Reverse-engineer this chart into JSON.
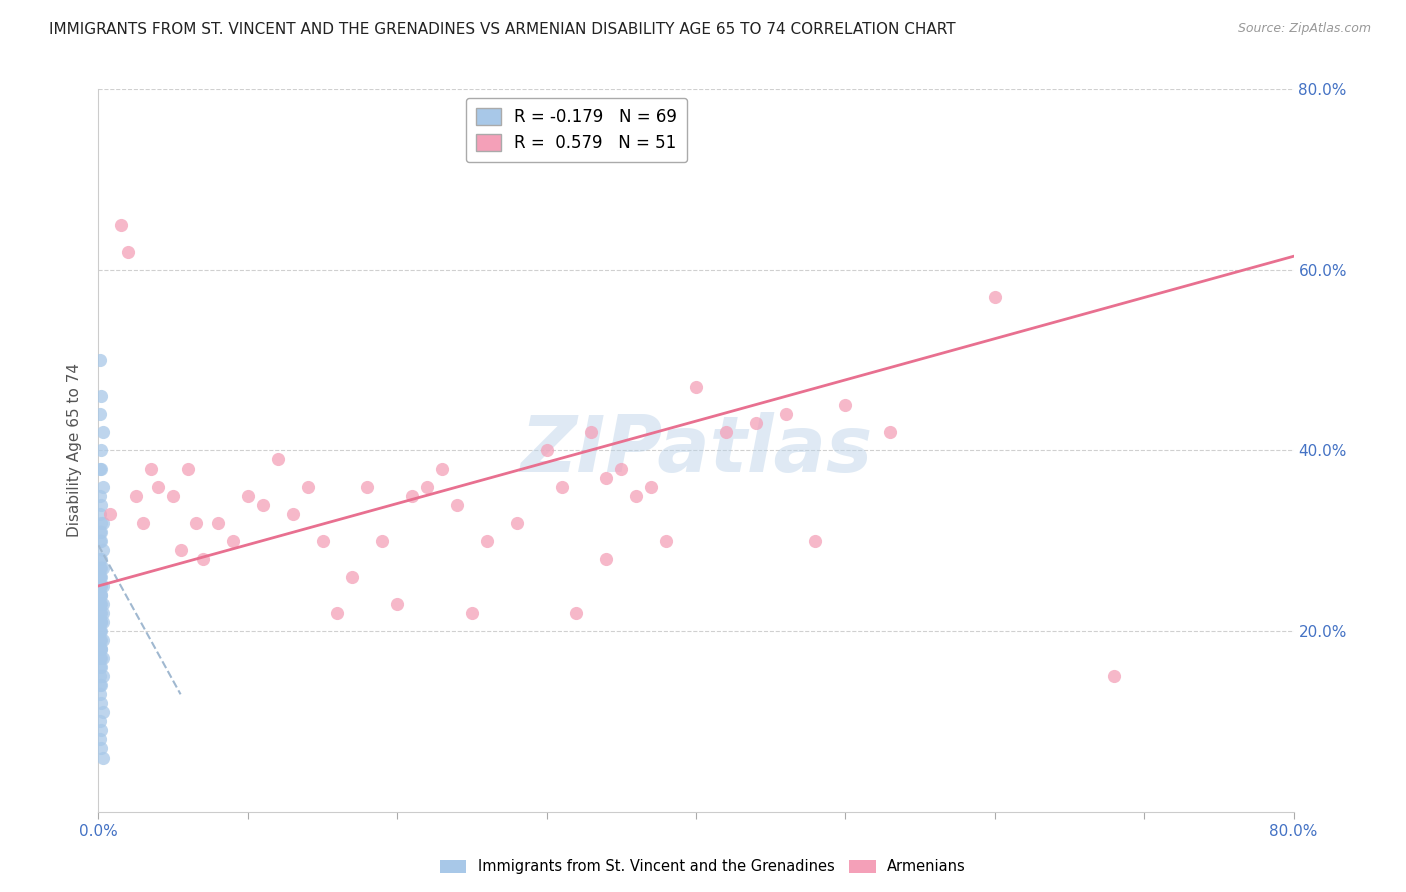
{
  "title": "IMMIGRANTS FROM ST. VINCENT AND THE GRENADINES VS ARMENIAN DISABILITY AGE 65 TO 74 CORRELATION CHART",
  "source": "Source: ZipAtlas.com",
  "ylabel": "Disability Age 65 to 74",
  "legend1_label": "Immigrants from St. Vincent and the Grenadines",
  "legend2_label": "Armenians",
  "R1": -0.179,
  "N1": 69,
  "R2": 0.579,
  "N2": 51,
  "color_blue": "#a8c8e8",
  "color_pink": "#f4a0b8",
  "color_blue_line": "#a0b8d0",
  "color_pink_line": "#e87090",
  "xmin": 0.0,
  "xmax": 0.8,
  "ymin": 0.0,
  "ymax": 0.8,
  "yticks": [
    0.2,
    0.4,
    0.6,
    0.8
  ],
  "xticks": [
    0.0,
    0.1,
    0.2,
    0.3,
    0.4,
    0.5,
    0.6,
    0.7,
    0.8
  ],
  "xtick_labels_show": [
    true,
    false,
    false,
    false,
    false,
    false,
    false,
    false,
    true
  ],
  "watermark_text": "ZIPatlas",
  "blue_points_x": [
    0.001,
    0.002,
    0.001,
    0.003,
    0.002,
    0.001,
    0.002,
    0.003,
    0.001,
    0.002,
    0.001,
    0.002,
    0.003,
    0.001,
    0.002,
    0.001,
    0.002,
    0.003,
    0.001,
    0.002,
    0.001,
    0.002,
    0.003,
    0.001,
    0.002,
    0.001,
    0.002,
    0.003,
    0.001,
    0.002,
    0.001,
    0.002,
    0.003,
    0.001,
    0.002,
    0.001,
    0.002,
    0.003,
    0.001,
    0.002,
    0.001,
    0.002,
    0.003,
    0.001,
    0.002,
    0.001,
    0.002,
    0.003,
    0.001,
    0.002,
    0.001,
    0.002,
    0.003,
    0.001,
    0.002,
    0.001,
    0.002,
    0.003,
    0.001,
    0.002,
    0.001,
    0.002,
    0.003,
    0.001,
    0.002,
    0.001,
    0.002,
    0.003,
    0.001
  ],
  "blue_points_y": [
    0.5,
    0.46,
    0.44,
    0.42,
    0.4,
    0.38,
    0.38,
    0.36,
    0.35,
    0.34,
    0.33,
    0.32,
    0.32,
    0.31,
    0.31,
    0.3,
    0.3,
    0.29,
    0.28,
    0.28,
    0.27,
    0.27,
    0.27,
    0.26,
    0.26,
    0.26,
    0.25,
    0.25,
    0.25,
    0.24,
    0.24,
    0.24,
    0.23,
    0.23,
    0.23,
    0.23,
    0.22,
    0.22,
    0.22,
    0.21,
    0.21,
    0.21,
    0.21,
    0.2,
    0.2,
    0.2,
    0.19,
    0.19,
    0.19,
    0.18,
    0.18,
    0.18,
    0.17,
    0.17,
    0.17,
    0.16,
    0.16,
    0.15,
    0.14,
    0.14,
    0.13,
    0.12,
    0.11,
    0.1,
    0.09,
    0.08,
    0.07,
    0.06,
    0.15
  ],
  "pink_points_x": [
    0.008,
    0.015,
    0.02,
    0.025,
    0.03,
    0.035,
    0.04,
    0.05,
    0.055,
    0.06,
    0.065,
    0.07,
    0.08,
    0.09,
    0.1,
    0.11,
    0.12,
    0.13,
    0.14,
    0.15,
    0.16,
    0.17,
    0.18,
    0.19,
    0.2,
    0.21,
    0.22,
    0.23,
    0.24,
    0.25,
    0.26,
    0.28,
    0.3,
    0.31,
    0.32,
    0.33,
    0.34,
    0.35,
    0.36,
    0.37,
    0.38,
    0.4,
    0.42,
    0.44,
    0.46,
    0.48,
    0.5,
    0.53,
    0.6,
    0.68,
    0.34
  ],
  "pink_points_y": [
    0.33,
    0.65,
    0.62,
    0.35,
    0.32,
    0.38,
    0.36,
    0.35,
    0.29,
    0.38,
    0.32,
    0.28,
    0.32,
    0.3,
    0.35,
    0.34,
    0.39,
    0.33,
    0.36,
    0.3,
    0.22,
    0.26,
    0.36,
    0.3,
    0.23,
    0.35,
    0.36,
    0.38,
    0.34,
    0.22,
    0.3,
    0.32,
    0.4,
    0.36,
    0.22,
    0.42,
    0.37,
    0.38,
    0.35,
    0.36,
    0.3,
    0.47,
    0.42,
    0.43,
    0.44,
    0.3,
    0.45,
    0.42,
    0.57,
    0.15,
    0.28
  ],
  "blue_line_x": [
    0.0,
    0.055
  ],
  "blue_line_y": [
    0.295,
    0.13
  ],
  "pink_line_x": [
    0.0,
    0.8
  ],
  "pink_line_y": [
    0.25,
    0.615
  ],
  "background_color": "#ffffff",
  "grid_color": "#d0d0d0",
  "title_color": "#222222",
  "tick_color": "#4472c4",
  "ylabel_color": "#555555"
}
